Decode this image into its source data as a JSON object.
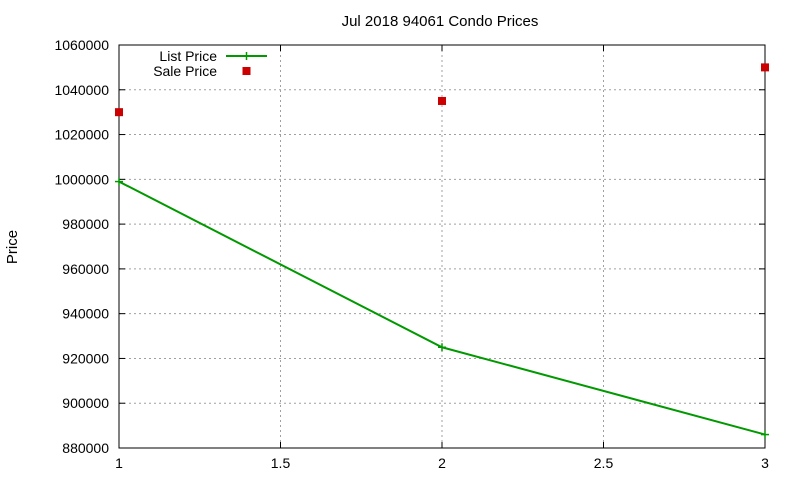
{
  "chart_data": {
    "type": "line",
    "title": "Jul 2018 94061 Condo Prices",
    "xlabel": "",
    "ylabel": "Price",
    "xlim": [
      1,
      3
    ],
    "ylim": [
      880000,
      1060000
    ],
    "x_ticks": [
      1,
      1.5,
      2,
      2.5,
      3
    ],
    "y_ticks": [
      880000,
      900000,
      920000,
      940000,
      960000,
      980000,
      1000000,
      1020000,
      1040000,
      1060000
    ],
    "grid": true,
    "legend_position": "top-left",
    "series": [
      {
        "name": "List Price",
        "style": "line-with-plus-markers",
        "color": "#009900",
        "x": [
          1,
          2,
          3
        ],
        "y": [
          999000,
          925000,
          886000
        ]
      },
      {
        "name": "Sale Price",
        "style": "square-markers",
        "color": "#cc0000",
        "x": [
          1,
          2,
          3
        ],
        "y": [
          1030000,
          1035000,
          1050000
        ]
      }
    ]
  }
}
